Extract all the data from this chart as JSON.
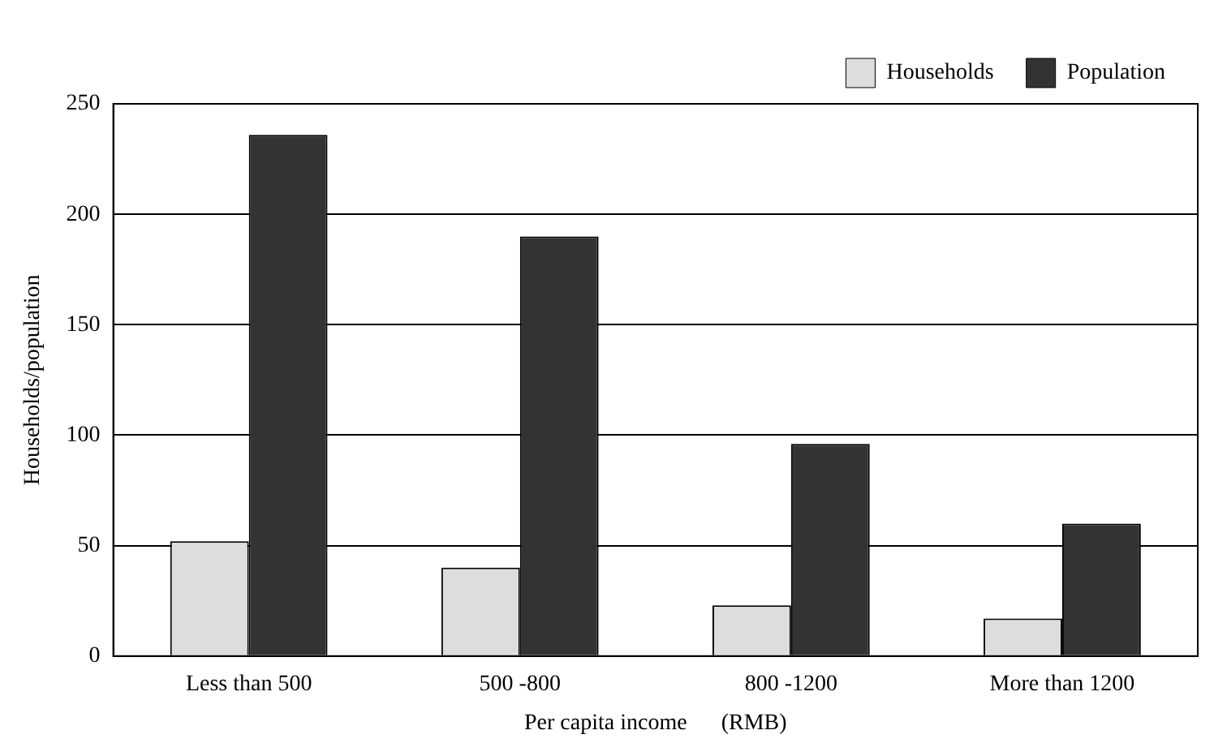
{
  "chart_data": {
    "type": "bar",
    "xlabel": "Per capita income      (RMB)",
    "ylabel": "Households/population",
    "categories": [
      "Less than 500",
      "500 -800",
      "800 -1200",
      "More than 1200"
    ],
    "series": [
      {
        "name": "Households",
        "color": "#dddddd",
        "values": [
          52,
          40,
          23,
          17
        ]
      },
      {
        "name": "Population",
        "color": "#333333",
        "values": [
          236,
          190,
          96,
          60
        ]
      }
    ],
    "ylim": [
      0,
      250
    ],
    "yticks": [
      0,
      50,
      100,
      150,
      200,
      250
    ],
    "grid": "y",
    "legend": "top right"
  }
}
